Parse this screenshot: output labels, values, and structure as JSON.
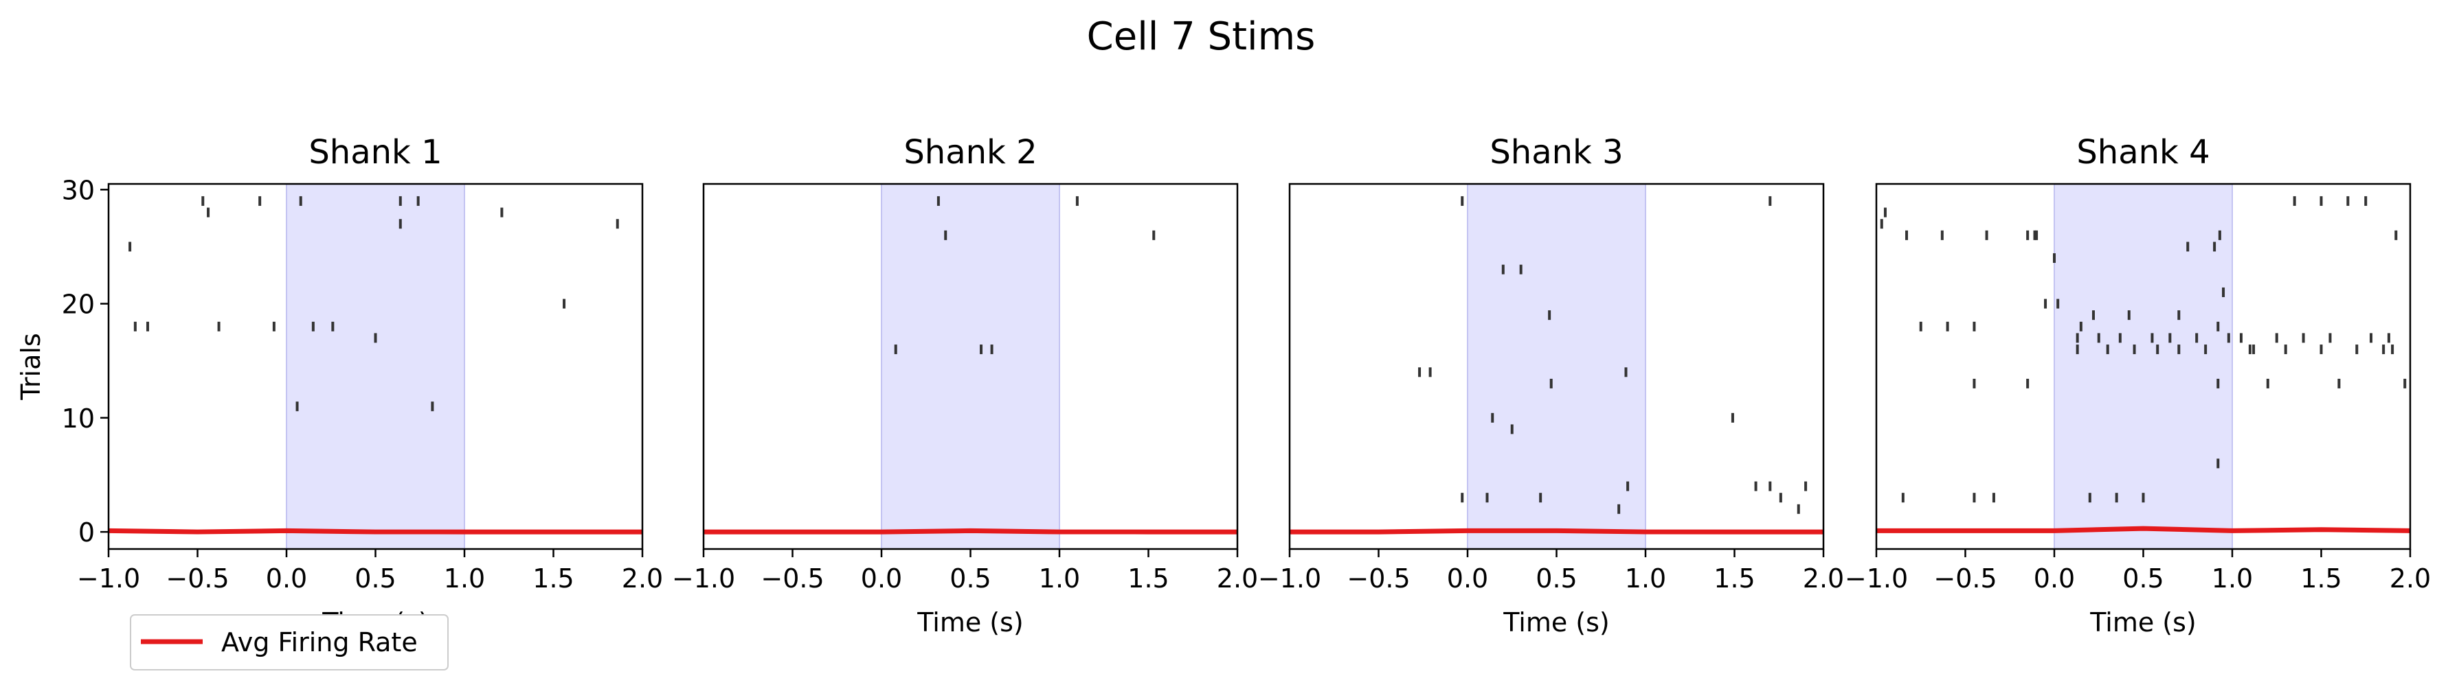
{
  "figure": {
    "title": "Cell 7 Stims",
    "legend_label": "Avg Firing Rate",
    "legend_color": "#e41a1c"
  },
  "chart_data": [
    {
      "type": "scatter",
      "title": "Shank 1",
      "xlabel": "Time (s)",
      "ylabel": "Trials",
      "xlim": [
        -1.0,
        2.0
      ],
      "ylim": [
        -1.5,
        30.5
      ],
      "xticks": [
        "−1.0",
        "−0.5",
        "0.0",
        "0.5",
        "1.0",
        "1.5",
        "2.0"
      ],
      "yticks": [
        "0",
        "10",
        "20",
        "30"
      ],
      "stim_window": [
        0.0,
        1.0
      ],
      "stim_color": "#e3e3fd",
      "spike_color": "#333333",
      "spikes": [
        [
          -0.88,
          25
        ],
        [
          -0.85,
          18
        ],
        [
          -0.78,
          18
        ],
        [
          -0.47,
          29
        ],
        [
          -0.44,
          28
        ],
        [
          -0.38,
          18
        ],
        [
          -0.15,
          29
        ],
        [
          -0.07,
          18
        ],
        [
          0.06,
          11
        ],
        [
          0.08,
          29
        ],
        [
          0.15,
          18
        ],
        [
          0.26,
          18
        ],
        [
          0.5,
          17
        ],
        [
          0.64,
          29
        ],
        [
          0.64,
          27
        ],
        [
          0.74,
          29
        ],
        [
          0.82,
          11
        ],
        [
          1.21,
          28
        ],
        [
          1.56,
          20
        ],
        [
          1.86,
          27
        ]
      ],
      "series": [
        {
          "name": "Avg Firing Rate",
          "x": [
            -1.0,
            -0.5,
            0,
            0.5,
            1.0,
            1.5,
            2.0
          ],
          "values": [
            0.1,
            0.0,
            0.1,
            0.0,
            0.0,
            0.0,
            0.0
          ]
        }
      ]
    },
    {
      "type": "scatter",
      "title": "Shank 2",
      "xlabel": "Time (s)",
      "ylabel": "",
      "xlim": [
        -1.0,
        2.0
      ],
      "ylim": [
        -1.5,
        30.5
      ],
      "xticks": [
        "−1.0",
        "−0.5",
        "0.0",
        "0.5",
        "1.0",
        "1.5",
        "2.0"
      ],
      "yticks": [],
      "stim_window": [
        0.0,
        1.0
      ],
      "stim_color": "#e3e3fd",
      "spike_color": "#333333",
      "spikes": [
        [
          0.08,
          16
        ],
        [
          0.32,
          29
        ],
        [
          0.36,
          26
        ],
        [
          0.56,
          16
        ],
        [
          0.62,
          16
        ],
        [
          1.1,
          29
        ],
        [
          1.53,
          26
        ]
      ],
      "series": [
        {
          "name": "Avg Firing Rate",
          "x": [
            -1.0,
            -0.5,
            0,
            0.5,
            1.0,
            1.5,
            2.0
          ],
          "values": [
            0.0,
            0.0,
            0.0,
            0.1,
            0.0,
            0.0,
            0.0
          ]
        }
      ]
    },
    {
      "type": "scatter",
      "title": "Shank 3",
      "xlabel": "Time (s)",
      "ylabel": "",
      "xlim": [
        -1.0,
        2.0
      ],
      "ylim": [
        -1.5,
        30.5
      ],
      "xticks": [
        "−1.0",
        "−0.5",
        "0.0",
        "0.5",
        "1.0",
        "1.5",
        "2.0"
      ],
      "yticks": [],
      "stim_window": [
        0.0,
        1.0
      ],
      "stim_color": "#e3e3fd",
      "spike_color": "#333333",
      "spikes": [
        [
          -0.03,
          29
        ],
        [
          -0.03,
          3
        ],
        [
          -0.27,
          14
        ],
        [
          -0.21,
          14
        ],
        [
          0.11,
          3
        ],
        [
          0.14,
          10
        ],
        [
          0.2,
          23
        ],
        [
          0.25,
          9
        ],
        [
          0.3,
          23
        ],
        [
          0.41,
          3
        ],
        [
          0.46,
          19
        ],
        [
          0.47,
          13
        ],
        [
          0.85,
          2
        ],
        [
          0.89,
          14
        ],
        [
          0.9,
          4
        ],
        [
          1.49,
          10
        ],
        [
          1.62,
          4
        ],
        [
          1.7,
          29
        ],
        [
          1.7,
          4
        ],
        [
          1.76,
          3
        ],
        [
          1.86,
          2
        ],
        [
          1.9,
          4
        ]
      ],
      "series": [
        {
          "name": "Avg Firing Rate",
          "x": [
            -1.0,
            -0.5,
            0,
            0.5,
            1.0,
            1.5,
            2.0
          ],
          "values": [
            0.0,
            0.0,
            0.1,
            0.1,
            0.0,
            0.0,
            0.0
          ]
        }
      ]
    },
    {
      "type": "scatter",
      "title": "Shank 4",
      "xlabel": "Time (s)",
      "ylabel": "",
      "xlim": [
        -1.0,
        2.0
      ],
      "ylim": [
        -1.5,
        30.5
      ],
      "xticks": [
        "−1.0",
        "−0.5",
        "0.0",
        "0.5",
        "1.0",
        "1.5",
        "2.0"
      ],
      "yticks": [],
      "stim_window": [
        0.0,
        1.0
      ],
      "stim_color": "#e3e3fd",
      "spike_color": "#333333",
      "spikes": [
        [
          -0.97,
          27
        ],
        [
          -0.85,
          3
        ],
        [
          -0.75,
          18
        ],
        [
          -0.6,
          18
        ],
        [
          -0.45,
          18
        ],
        [
          -0.45,
          3
        ],
        [
          -0.38,
          26
        ],
        [
          -0.34,
          3
        ],
        [
          -0.15,
          26
        ],
        [
          -0.11,
          26
        ],
        [
          -0.05,
          20
        ],
        [
          -0.1,
          26
        ],
        [
          -0.15,
          13
        ],
        [
          -0.45,
          13
        ],
        [
          -0.63,
          26
        ],
        [
          -0.83,
          26
        ],
        [
          0.0,
          24
        ],
        [
          0.02,
          20
        ],
        [
          0.13,
          17
        ],
        [
          0.13,
          16
        ],
        [
          0.15,
          18
        ],
        [
          0.2,
          3
        ],
        [
          0.22,
          19
        ],
        [
          0.25,
          17
        ],
        [
          0.3,
          16
        ],
        [
          0.35,
          3
        ],
        [
          0.37,
          17
        ],
        [
          0.42,
          19
        ],
        [
          0.45,
          16
        ],
        [
          0.5,
          3
        ],
        [
          0.55,
          17
        ],
        [
          0.58,
          16
        ],
        [
          0.65,
          17
        ],
        [
          0.7,
          19
        ],
        [
          0.7,
          16
        ],
        [
          0.75,
          25
        ],
        [
          0.8,
          17
        ],
        [
          0.85,
          16
        ],
        [
          0.9,
          25
        ],
        [
          0.92,
          13
        ],
        [
          0.92,
          6
        ],
        [
          0.92,
          18
        ],
        [
          0.93,
          26
        ],
        [
          0.95,
          21
        ],
        [
          0.98,
          17
        ],
        [
          1.05,
          17
        ],
        [
          1.1,
          16
        ],
        [
          1.12,
          16
        ],
        [
          1.2,
          13
        ],
        [
          1.25,
          17
        ],
        [
          1.3,
          16
        ],
        [
          1.35,
          29
        ],
        [
          1.4,
          17
        ],
        [
          1.5,
          29
        ],
        [
          1.5,
          16
        ],
        [
          1.55,
          17
        ],
        [
          1.6,
          13
        ],
        [
          1.65,
          29
        ],
        [
          1.7,
          16
        ],
        [
          1.75,
          29
        ],
        [
          1.78,
          17
        ],
        [
          1.85,
          16
        ],
        [
          1.88,
          17
        ],
        [
          1.9,
          16
        ],
        [
          1.92,
          26
        ],
        [
          1.97,
          13
        ],
        [
          -0.95,
          28
        ]
      ],
      "series": [
        {
          "name": "Avg Firing Rate",
          "x": [
            -1.0,
            -0.5,
            0,
            0.5,
            1.0,
            1.5,
            2.0
          ],
          "values": [
            0.1,
            0.1,
            0.1,
            0.3,
            0.1,
            0.2,
            0.1
          ]
        }
      ]
    }
  ]
}
